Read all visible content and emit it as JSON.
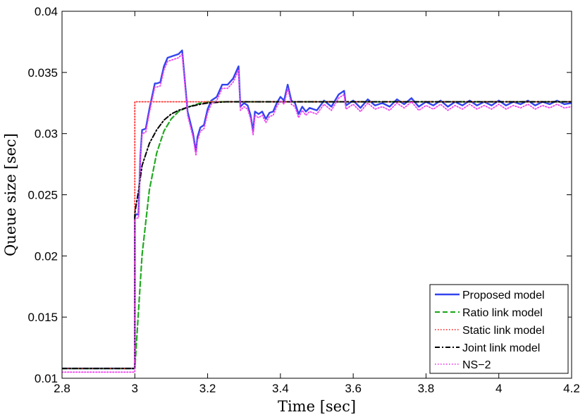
{
  "chart_data": {
    "type": "line",
    "xlabel": "Time [sec]",
    "ylabel": "Queue size [sec]",
    "xlim": [
      2.8,
      4.2
    ],
    "ylim": [
      0.01,
      0.04
    ],
    "xticks": [
      2.8,
      3,
      3.2,
      3.4,
      3.6,
      3.8,
      4,
      4.2
    ],
    "yticks": [
      0.01,
      0.015,
      0.02,
      0.025,
      0.03,
      0.035,
      0.04
    ],
    "xtick_labels": [
      "2.8",
      "3",
      "3.2",
      "3.4",
      "3.6",
      "3.8",
      "4",
      "4.2"
    ],
    "ytick_labels": [
      "0.01",
      "0.015",
      "0.02",
      "0.025",
      "0.03",
      "0.035",
      "0.04"
    ],
    "legend_position": "bottom-right",
    "series": [
      {
        "name": "Proposed model",
        "color": "#3344ee",
        "style": "solid",
        "x": [
          2.8,
          3.0,
          3.0,
          3.003,
          3.01,
          3.015,
          3.02,
          3.03,
          3.04,
          3.055,
          3.06,
          3.07,
          3.08,
          3.09,
          3.1,
          3.12,
          3.13,
          3.145,
          3.16,
          3.168,
          3.172,
          3.18,
          3.19,
          3.2,
          3.21,
          3.225,
          3.24,
          3.255,
          3.27,
          3.285,
          3.29,
          3.3,
          3.31,
          3.318,
          3.325,
          3.33,
          3.34,
          3.35,
          3.36,
          3.37,
          3.38,
          3.39,
          3.4,
          3.41,
          3.42,
          3.43,
          3.44,
          3.45,
          3.46,
          3.47,
          3.48,
          3.5,
          3.52,
          3.54,
          3.56,
          3.575,
          3.58,
          3.6,
          3.62,
          3.64,
          3.66,
          3.68,
          3.7,
          3.72,
          3.74,
          3.76,
          3.78,
          3.8,
          3.82,
          3.84,
          3.86,
          3.88,
          3.9,
          3.92,
          3.94,
          3.96,
          3.98,
          4.0,
          4.02,
          4.04,
          4.06,
          4.08,
          4.1,
          4.12,
          4.14,
          4.16,
          4.18,
          4.2
        ],
        "y": [
          0.0108,
          0.0108,
          0.0232,
          0.0234,
          0.0234,
          0.028,
          0.0303,
          0.0304,
          0.032,
          0.0341,
          0.0341,
          0.0342,
          0.0355,
          0.0362,
          0.0363,
          0.0365,
          0.0368,
          0.0318,
          0.03,
          0.0285,
          0.0297,
          0.0305,
          0.0307,
          0.032,
          0.0327,
          0.033,
          0.034,
          0.034,
          0.0345,
          0.0355,
          0.0322,
          0.0325,
          0.0323,
          0.0315,
          0.0302,
          0.0318,
          0.0316,
          0.0318,
          0.0312,
          0.0317,
          0.0318,
          0.0325,
          0.033,
          0.0327,
          0.034,
          0.0327,
          0.0325,
          0.0316,
          0.0322,
          0.0318,
          0.0321,
          0.0319,
          0.0327,
          0.0322,
          0.0332,
          0.0335,
          0.0323,
          0.0327,
          0.0321,
          0.0328,
          0.0323,
          0.0325,
          0.0322,
          0.0328,
          0.0324,
          0.0329,
          0.0322,
          0.0326,
          0.0323,
          0.0327,
          0.0322,
          0.0326,
          0.0323,
          0.0327,
          0.0323,
          0.0326,
          0.0323,
          0.0327,
          0.0323,
          0.0326,
          0.0324,
          0.0327,
          0.0323,
          0.0326,
          0.0324,
          0.0327,
          0.0324,
          0.0325
        ]
      },
      {
        "name": "Ratio link model",
        "color": "#22aa22",
        "style": "dashed",
        "x": [
          2.8,
          3.0,
          3.0,
          3.02,
          3.04,
          3.06,
          3.08,
          3.1,
          3.12,
          3.14,
          3.16,
          3.18,
          3.2,
          3.22,
          3.25,
          3.3,
          3.35,
          3.4,
          3.5,
          3.6,
          3.8,
          4.0,
          4.2
        ],
        "y": [
          0.0108,
          0.0108,
          0.0108,
          0.0201,
          0.0254,
          0.0284,
          0.0302,
          0.0312,
          0.0318,
          0.0321,
          0.0323,
          0.0325,
          0.0326,
          0.0326,
          0.0326,
          0.0326,
          0.0326,
          0.0326,
          0.0326,
          0.0326,
          0.0326,
          0.0326,
          0.0326
        ]
      },
      {
        "name": "Static link model",
        "color": "#ff3333",
        "style": "dotted",
        "x": [
          2.8,
          3.0,
          3.0,
          4.2
        ],
        "y": [
          0.0108,
          0.0108,
          0.0326,
          0.0326
        ]
      },
      {
        "name": "Joint link model",
        "color": "#000000",
        "style": "dashdot",
        "x": [
          2.8,
          3.0,
          3.0,
          3.01,
          3.02,
          3.04,
          3.06,
          3.08,
          3.1,
          3.12,
          3.15,
          3.18,
          3.2,
          3.25,
          3.3,
          3.4,
          3.5,
          3.7,
          4.0,
          4.2
        ],
        "y": [
          0.0108,
          0.0108,
          0.0235,
          0.0253,
          0.0274,
          0.0292,
          0.0303,
          0.0311,
          0.0316,
          0.0319,
          0.0322,
          0.0324,
          0.0325,
          0.0326,
          0.0326,
          0.0326,
          0.0326,
          0.0326,
          0.0326,
          0.0326
        ]
      },
      {
        "name": "NS−2",
        "color": "#ee44ee",
        "style": "dotted",
        "x": [
          2.8,
          3.0,
          3.0,
          3.003,
          3.01,
          3.015,
          3.02,
          3.03,
          3.04,
          3.055,
          3.06,
          3.07,
          3.08,
          3.09,
          3.1,
          3.12,
          3.13,
          3.145,
          3.16,
          3.168,
          3.172,
          3.18,
          3.19,
          3.2,
          3.21,
          3.225,
          3.24,
          3.255,
          3.27,
          3.285,
          3.29,
          3.3,
          3.31,
          3.318,
          3.325,
          3.33,
          3.34,
          3.35,
          3.36,
          3.37,
          3.38,
          3.39,
          3.4,
          3.41,
          3.42,
          3.43,
          3.44,
          3.45,
          3.46,
          3.47,
          3.48,
          3.5,
          3.52,
          3.54,
          3.56,
          3.575,
          3.58,
          3.6,
          3.62,
          3.64,
          3.66,
          3.68,
          3.7,
          3.72,
          3.74,
          3.76,
          3.78,
          3.8,
          3.82,
          3.84,
          3.86,
          3.88,
          3.9,
          3.92,
          3.94,
          3.96,
          3.98,
          4.0,
          4.02,
          4.04,
          4.06,
          4.08,
          4.1,
          4.12,
          4.14,
          4.16,
          4.18,
          4.2
        ],
        "y": [
          0.0105,
          0.0105,
          0.0229,
          0.0231,
          0.0231,
          0.0277,
          0.03,
          0.0301,
          0.0317,
          0.0338,
          0.0338,
          0.0339,
          0.0352,
          0.0359,
          0.036,
          0.0362,
          0.0365,
          0.0315,
          0.0297,
          0.0282,
          0.0294,
          0.0302,
          0.0304,
          0.0317,
          0.0324,
          0.0327,
          0.0337,
          0.0337,
          0.0342,
          0.0352,
          0.0319,
          0.0322,
          0.032,
          0.0312,
          0.0299,
          0.0315,
          0.0313,
          0.0315,
          0.0309,
          0.0314,
          0.0315,
          0.0322,
          0.0327,
          0.0324,
          0.0337,
          0.0324,
          0.0322,
          0.0313,
          0.0319,
          0.0315,
          0.0318,
          0.0316,
          0.0324,
          0.0319,
          0.0329,
          0.0332,
          0.032,
          0.0324,
          0.0318,
          0.0325,
          0.032,
          0.0322,
          0.0319,
          0.0325,
          0.0321,
          0.0326,
          0.0319,
          0.0323,
          0.032,
          0.0324,
          0.0319,
          0.0323,
          0.032,
          0.0324,
          0.032,
          0.0323,
          0.032,
          0.0324,
          0.032,
          0.0323,
          0.0321,
          0.0324,
          0.032,
          0.0323,
          0.0321,
          0.0324,
          0.0321,
          0.0322
        ]
      }
    ]
  }
}
